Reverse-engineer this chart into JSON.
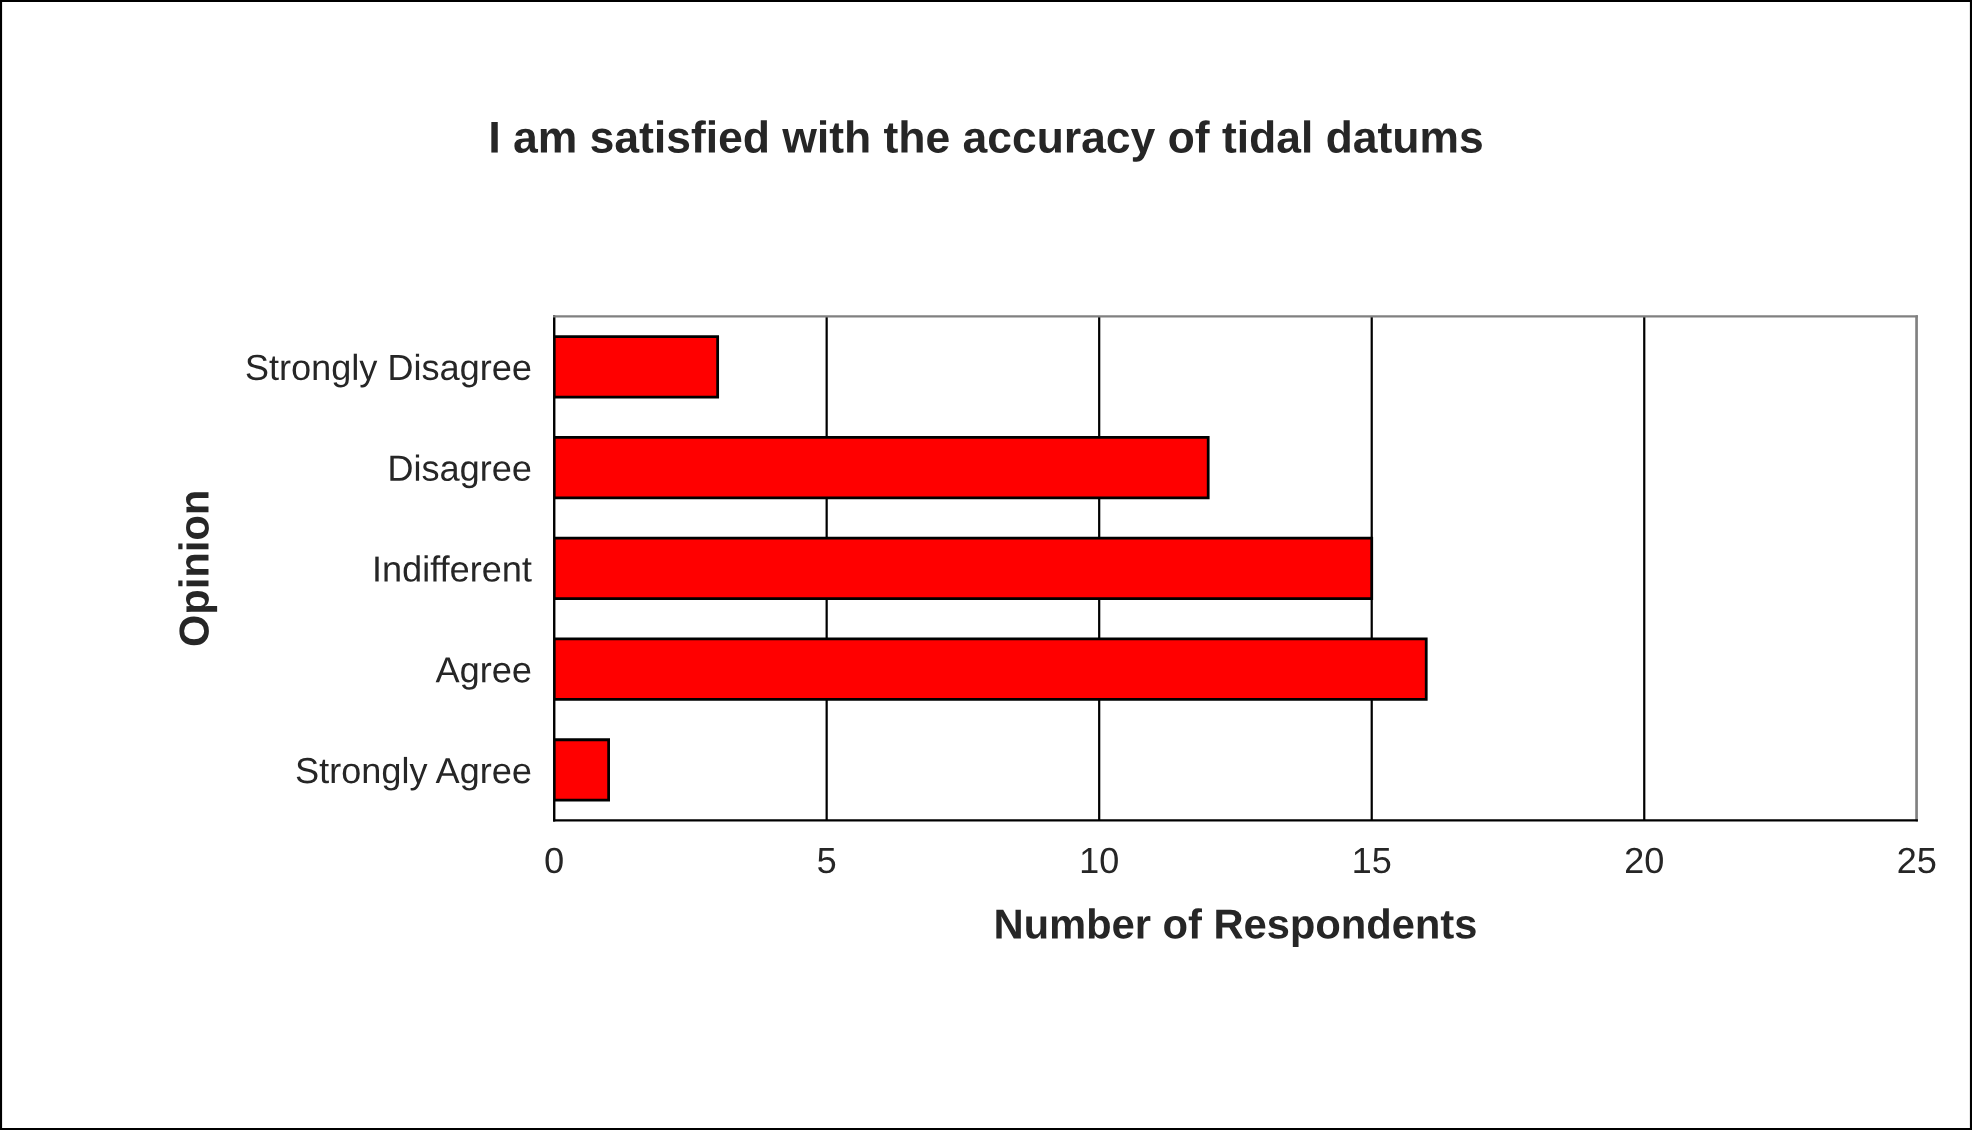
{
  "chart_data": {
    "type": "bar",
    "orientation": "horizontal",
    "title": "I am satisfied with the accuracy of tidal datums",
    "xlabel": "Number of Respondents",
    "ylabel": "Opinion",
    "categories": [
      "Strongly Disagree",
      "Disagree",
      "Indifferent",
      "Agree",
      "Strongly Agree"
    ],
    "values": [
      3,
      12,
      15,
      16,
      1
    ],
    "color": "#ff0000",
    "xlim": [
      0,
      25
    ],
    "xticks": [
      0,
      5,
      10,
      15,
      20,
      25
    ],
    "grid": "x"
  }
}
